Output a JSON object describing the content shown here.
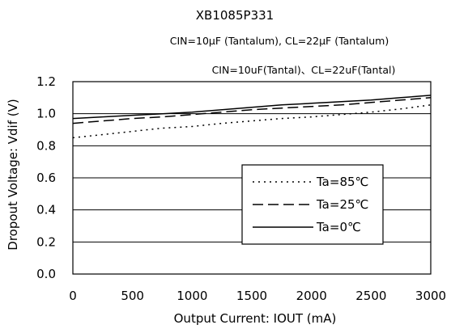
{
  "chart_data": {
    "type": "line",
    "title": "XB1085P331",
    "subtitle": "CIN=10µF (Tantalum), CL=22µF (Tantalum)",
    "subtitle2": "CIN=10uF(Tantal)、CL=22uF(Tantal)",
    "xlabel": "Output Current: IOUT (mA)",
    "ylabel": "Dropout Voltage: Vdif (V)",
    "xlim": [
      0,
      3000
    ],
    "ylim": [
      0.0,
      1.2
    ],
    "x_ticks": [
      "0",
      "500",
      "1000",
      "1500",
      "2000",
      "2500",
      "3000"
    ],
    "y_ticks": [
      "0.0",
      "0.2",
      "0.4",
      "0.6",
      "0.8",
      "1.0",
      "1.2"
    ],
    "grid": "horizontal",
    "legend_position": "lower-right",
    "series": [
      {
        "name": "Ta=85℃",
        "style": "dotted",
        "x": [
          0,
          250,
          500,
          750,
          1000,
          1250,
          1500,
          1750,
          2000,
          2250,
          2500,
          2750,
          3000
        ],
        "y": [
          0.85,
          0.87,
          0.89,
          0.91,
          0.92,
          0.94,
          0.955,
          0.97,
          0.98,
          0.995,
          1.01,
          1.03,
          1.055
        ]
      },
      {
        "name": "Ta=25℃",
        "style": "dashed",
        "x": [
          0,
          250,
          500,
          750,
          1000,
          1250,
          1500,
          1750,
          2000,
          2250,
          2500,
          2750,
          3000
        ],
        "y": [
          0.94,
          0.955,
          0.97,
          0.98,
          0.995,
          1.01,
          1.025,
          1.035,
          1.045,
          1.055,
          1.07,
          1.085,
          1.1
        ]
      },
      {
        "name": "Ta=0℃",
        "style": "solid",
        "x": [
          0,
          250,
          500,
          750,
          1000,
          1250,
          1500,
          1750,
          2000,
          2250,
          2500,
          2750,
          3000
        ],
        "y": [
          0.97,
          0.98,
          0.99,
          1.0,
          1.01,
          1.025,
          1.04,
          1.055,
          1.065,
          1.075,
          1.085,
          1.1,
          1.115
        ]
      }
    ]
  }
}
